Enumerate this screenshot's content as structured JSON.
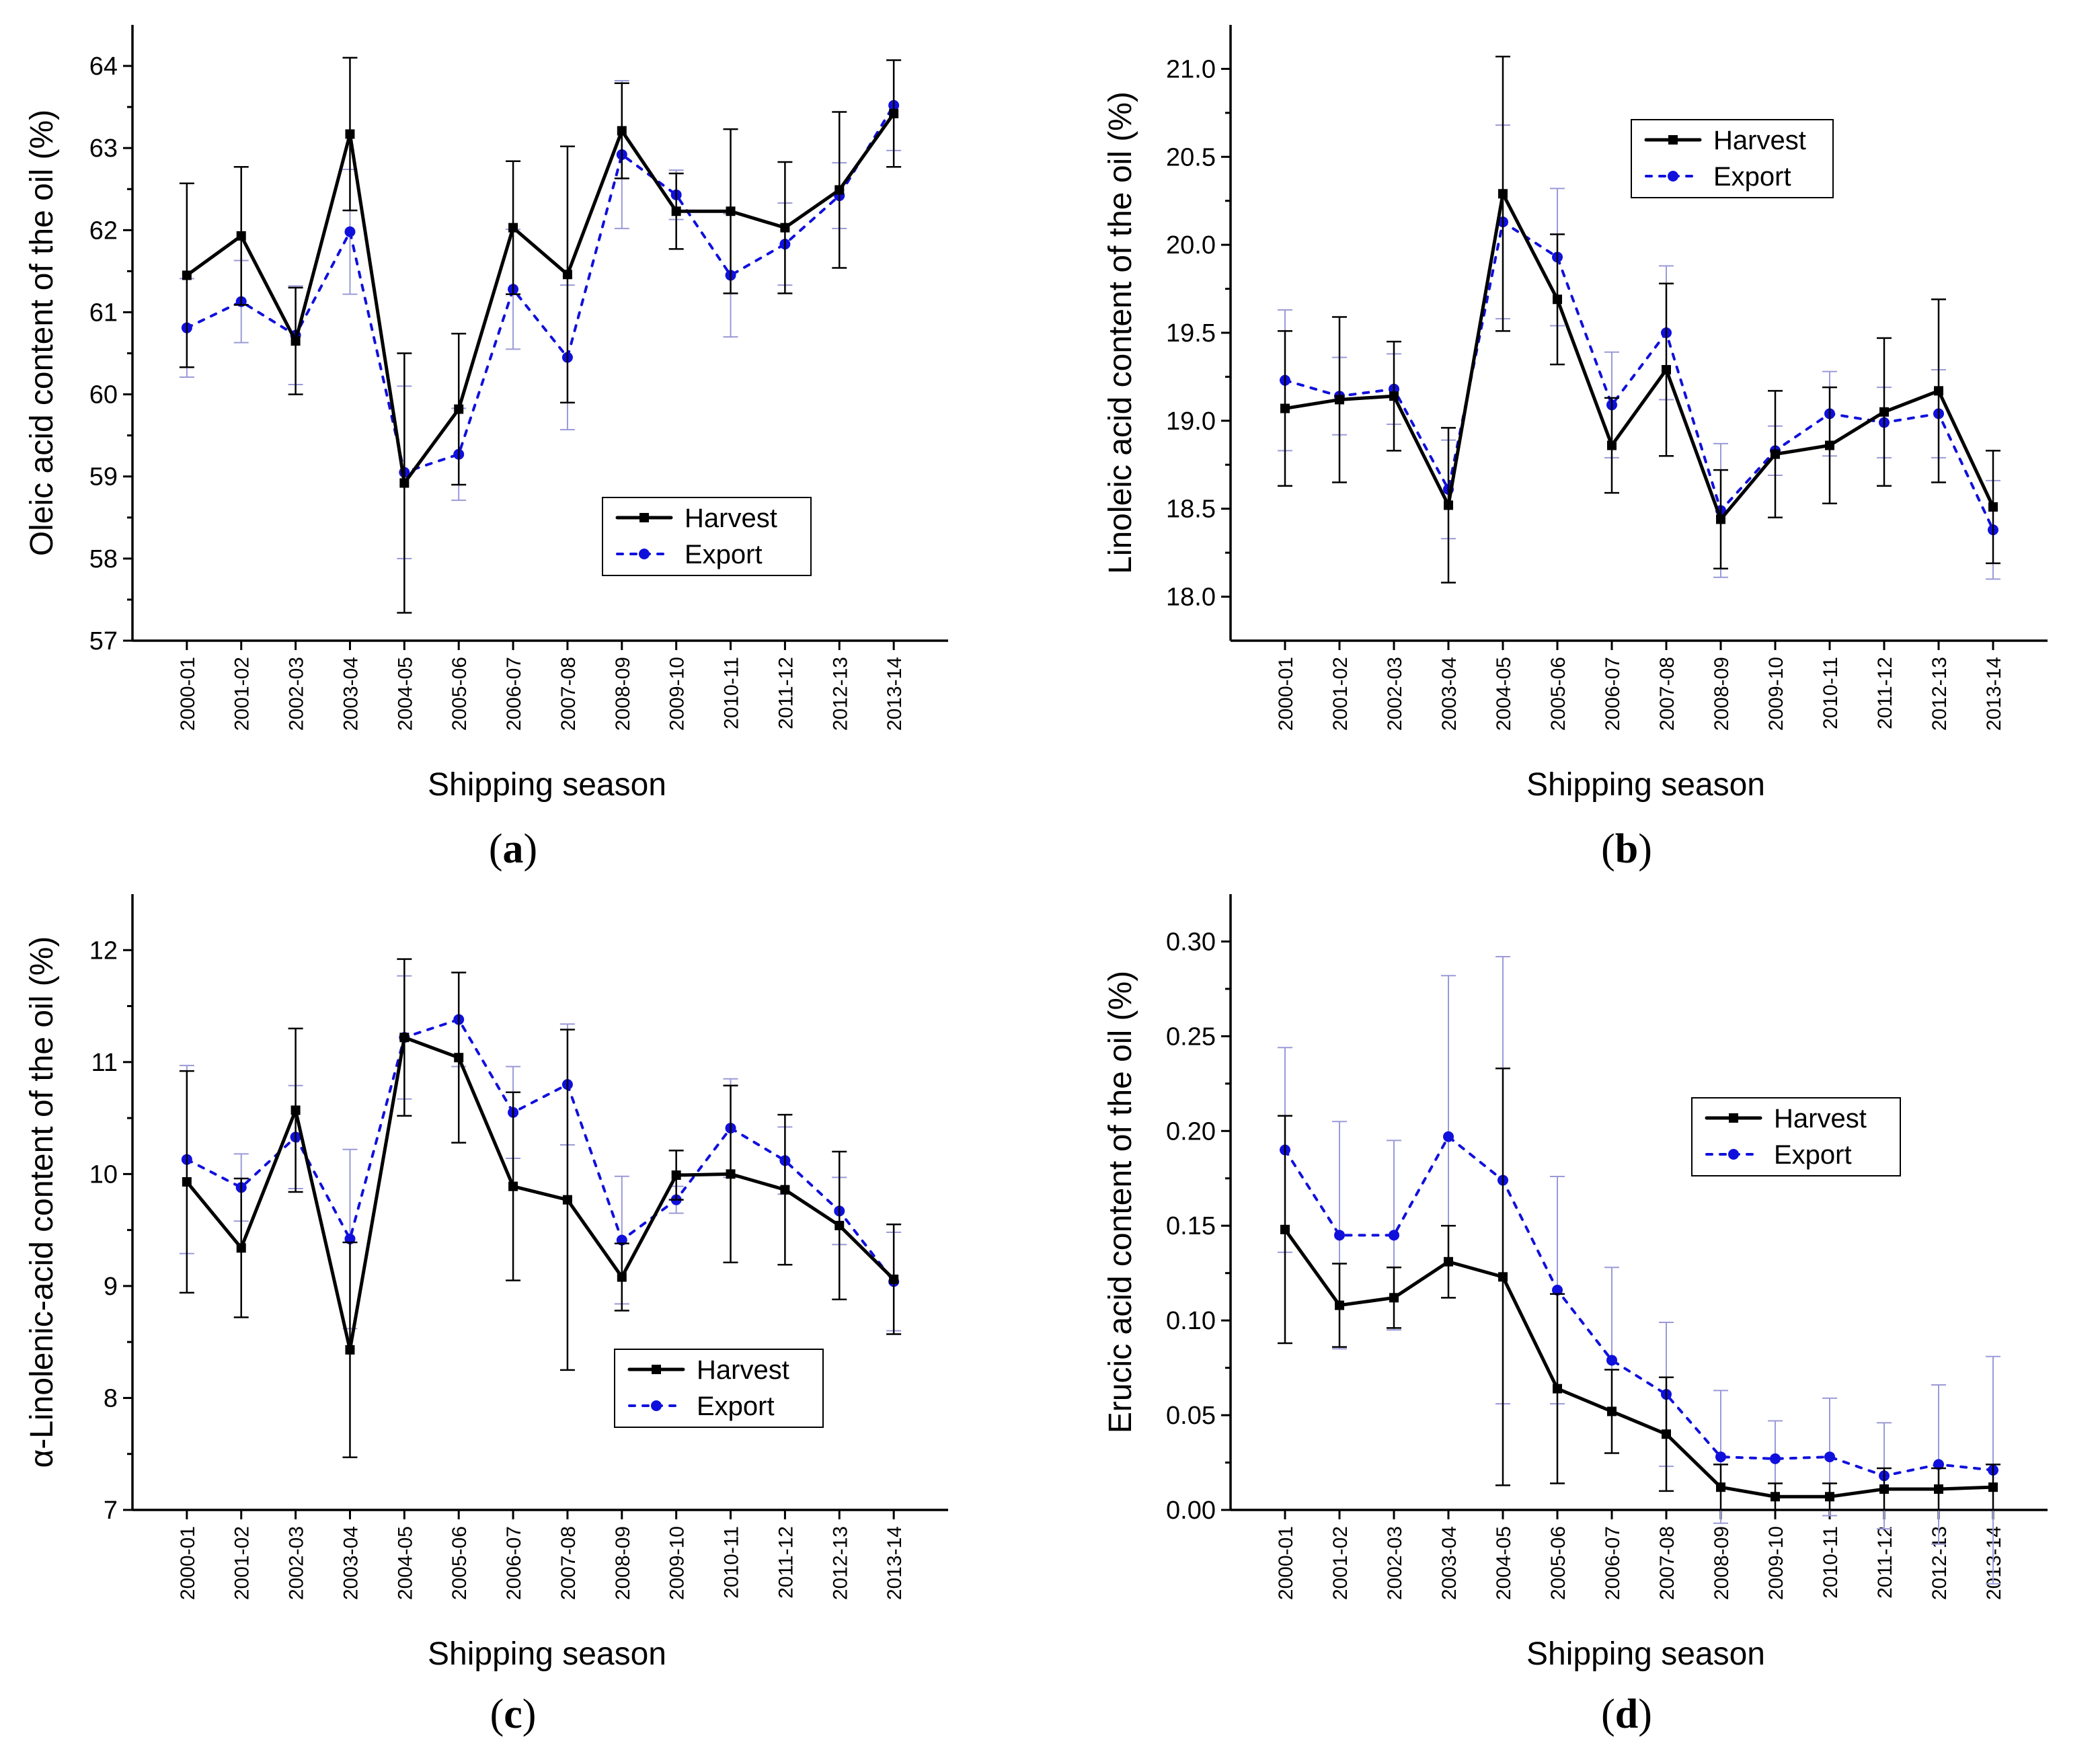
{
  "figure": {
    "series_names": [
      "Harvest",
      "Export"
    ],
    "colors": {
      "harvest": "#000000",
      "export": "#1010dd",
      "export_error": "#9a9ad8",
      "harvest_error": "#000000"
    }
  },
  "chart_data": [
    {
      "id": "a",
      "type": "line",
      "panel_label": "a",
      "title": "",
      "xlabel": "Shipping season",
      "ylabel": "Oleic acid content of the oil (%)",
      "categories": [
        "2000-01",
        "2001-02",
        "2002-03",
        "2003-04",
        "2004-05",
        "2005-06",
        "2006-07",
        "2007-08",
        "2008-09",
        "2009-10",
        "2010-11",
        "2011-12",
        "2012-13",
        "2013-14"
      ],
      "ylim": [
        57,
        64.5
      ],
      "yticks": [
        57,
        58,
        59,
        60,
        61,
        62,
        63,
        64
      ],
      "ytick_labels": [
        "57",
        "58",
        "59",
        "60",
        "61",
        "62",
        "63",
        "64"
      ],
      "legend_position": "lower-right",
      "series": [
        {
          "name": "Harvest",
          "values": [
            61.45,
            61.93,
            60.65,
            63.17,
            58.92,
            59.82,
            62.03,
            61.46,
            63.21,
            62.23,
            62.23,
            62.03,
            62.49,
            63.42
          ],
          "error": [
            1.12,
            0.84,
            0.65,
            0.93,
            1.58,
            0.92,
            0.81,
            1.56,
            0.58,
            0.46,
            1.0,
            0.8,
            0.95,
            0.65
          ]
        },
        {
          "name": "Export",
          "values": [
            60.81,
            61.13,
            60.72,
            61.98,
            59.05,
            59.27,
            61.28,
            60.45,
            62.92,
            62.43,
            61.45,
            61.83,
            62.42,
            63.52
          ],
          "error": [
            0.6,
            0.5,
            0.6,
            0.76,
            1.05,
            0.56,
            0.73,
            0.88,
            0.9,
            0.3,
            0.75,
            0.5,
            0.4,
            0.55
          ]
        }
      ]
    },
    {
      "id": "b",
      "type": "line",
      "panel_label": "b",
      "title": "",
      "xlabel": "Shipping season",
      "ylabel": "Linoleic acid content of the oil (%)",
      "categories": [
        "2000-01",
        "2001-02",
        "2002-03",
        "2003-04",
        "2004-05",
        "2005-06",
        "2006-07",
        "2007-08",
        "2008-09",
        "2009-10",
        "2010-11",
        "2011-12",
        "2012-13",
        "2013-14"
      ],
      "ylim": [
        17.75,
        21.25
      ],
      "yticks": [
        18.0,
        18.5,
        19.0,
        19.5,
        20.0,
        20.5,
        21.0
      ],
      "ytick_labels": [
        "18.0",
        "18.5",
        "19.0",
        "19.5",
        "20.0",
        "20.5",
        "21.0"
      ],
      "legend_position": "top-center",
      "series": [
        {
          "name": "Harvest",
          "values": [
            19.07,
            19.12,
            19.14,
            18.52,
            20.29,
            19.69,
            18.86,
            19.29,
            18.44,
            18.81,
            18.86,
            19.05,
            19.17,
            18.51
          ],
          "error": [
            0.44,
            0.47,
            0.31,
            0.44,
            0.78,
            0.37,
            0.27,
            0.49,
            0.28,
            0.36,
            0.33,
            0.42,
            0.52,
            0.32
          ]
        },
        {
          "name": "Export",
          "values": [
            19.23,
            19.14,
            19.18,
            18.61,
            20.13,
            19.93,
            19.09,
            19.5,
            18.49,
            18.83,
            19.04,
            18.99,
            19.04,
            18.38
          ],
          "error": [
            0.4,
            0.22,
            0.2,
            0.28,
            0.55,
            0.39,
            0.3,
            0.38,
            0.38,
            0.14,
            0.24,
            0.2,
            0.25,
            0.28
          ]
        }
      ]
    },
    {
      "id": "c",
      "type": "line",
      "panel_label": "c",
      "title": "",
      "xlabel": "Shipping season",
      "ylabel": "α-Linolenic-acid content of the oil (%)",
      "categories": [
        "2000-01",
        "2001-02",
        "2002-03",
        "2003-04",
        "2004-05",
        "2005-06",
        "2006-07",
        "2007-08",
        "2008-09",
        "2009-10",
        "2010-11",
        "2011-12",
        "2012-13",
        "2013-14"
      ],
      "ylim": [
        7,
        12.5
      ],
      "yticks": [
        7,
        8,
        9,
        10,
        11,
        12
      ],
      "ytick_labels": [
        "7",
        "8",
        "9",
        "10",
        "11",
        "12"
      ],
      "legend_position": "lower-center",
      "series": [
        {
          "name": "Harvest",
          "values": [
            9.93,
            9.34,
            10.57,
            8.43,
            11.22,
            11.04,
            9.89,
            9.77,
            9.08,
            9.99,
            10.0,
            9.86,
            9.54,
            9.06
          ],
          "error": [
            0.99,
            0.62,
            0.73,
            0.96,
            0.7,
            0.76,
            0.84,
            1.52,
            0.3,
            0.22,
            0.79,
            0.67,
            0.66,
            0.49
          ]
        },
        {
          "name": "Export",
          "values": [
            10.13,
            9.88,
            10.33,
            9.42,
            11.22,
            11.38,
            10.55,
            10.8,
            9.41,
            9.77,
            10.41,
            10.12,
            9.67,
            9.04
          ],
          "error": [
            0.84,
            0.3,
            0.46,
            0.8,
            0.55,
            0.42,
            0.41,
            0.54,
            0.57,
            0.12,
            0.44,
            0.3,
            0.3,
            0.44
          ]
        }
      ]
    },
    {
      "id": "d",
      "type": "line",
      "panel_label": "d",
      "title": "",
      "xlabel": "Shipping season",
      "ylabel": "Erucic acid content of the oil (%)",
      "categories": [
        "2000-01",
        "2001-02",
        "2002-03",
        "2003-04",
        "2004-05",
        "2005-06",
        "2006-07",
        "2007-08",
        "2008-09",
        "2009-10",
        "2010-11",
        "2011-12",
        "2012-13",
        "2013-14"
      ],
      "ylim": [
        0,
        0.325
      ],
      "yticks": [
        0.0,
        0.05,
        0.1,
        0.15,
        0.2,
        0.25,
        0.3
      ],
      "ytick_labels": [
        "0.00",
        "0.05",
        "0.10",
        "0.15",
        "0.20",
        "0.25",
        "0.30"
      ],
      "legend_position": "top-right",
      "series": [
        {
          "name": "Harvest",
          "values": [
            0.148,
            0.108,
            0.112,
            0.131,
            0.123,
            0.064,
            0.052,
            0.04,
            0.012,
            0.007,
            0.007,
            0.011,
            0.011,
            0.012
          ],
          "error": [
            0.06,
            0.022,
            0.016,
            0.019,
            0.11,
            0.05,
            0.022,
            0.03,
            0.012,
            0.007,
            0.007,
            0.011,
            0.011,
            0.012
          ]
        },
        {
          "name": "Export",
          "values": [
            0.19,
            0.145,
            0.145,
            0.197,
            0.174,
            0.116,
            0.079,
            0.061,
            0.028,
            0.027,
            0.028,
            0.018,
            0.024,
            0.021
          ],
          "error": [
            0.054,
            0.06,
            0.05,
            0.085,
            0.118,
            0.06,
            0.049,
            0.038,
            0.035,
            0.02,
            0.031,
            0.028,
            0.042,
            0.06
          ]
        }
      ]
    }
  ]
}
